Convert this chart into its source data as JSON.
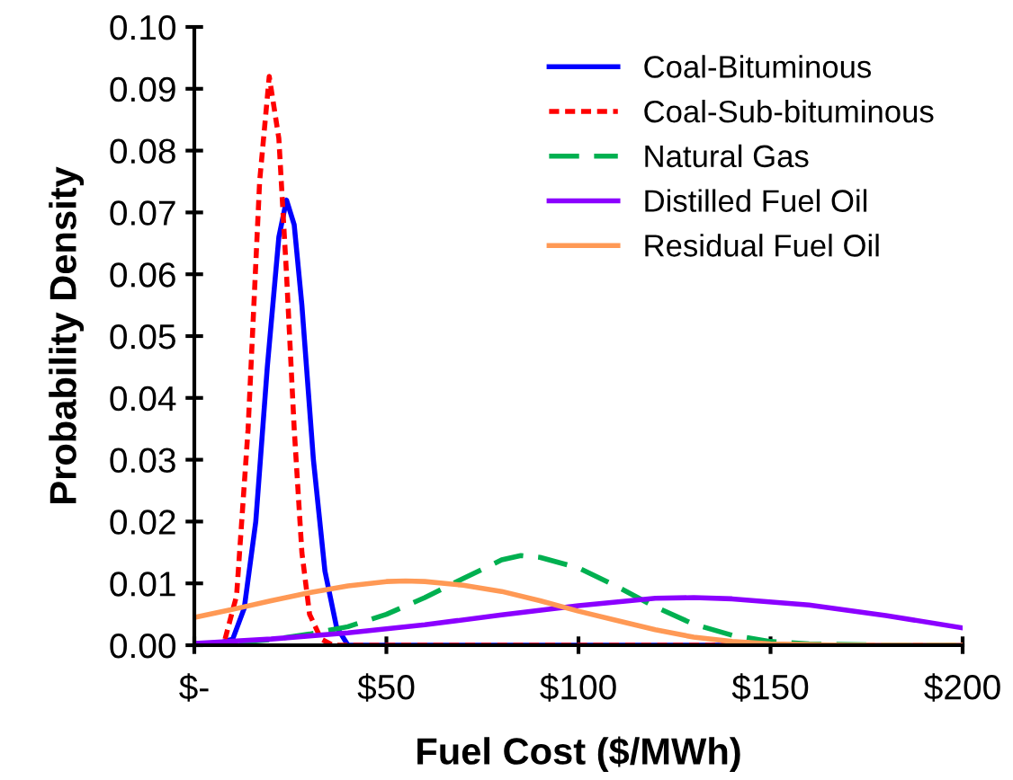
{
  "chart_data": {
    "type": "line",
    "xlabel": "Fuel Cost ($/MWh)",
    "ylabel": "Probability Density",
    "xlim": [
      0,
      200
    ],
    "ylim": [
      0,
      0.1
    ],
    "xticks": [
      {
        "value": 0,
        "label": "$-"
      },
      {
        "value": 50,
        "label": "$50"
      },
      {
        "value": 100,
        "label": "$100"
      },
      {
        "value": 150,
        "label": "$150"
      },
      {
        "value": 200,
        "label": "$200"
      }
    ],
    "yticks": [
      {
        "value": 0,
        "label": "0.00"
      },
      {
        "value": 0.01,
        "label": "0.01"
      },
      {
        "value": 0.02,
        "label": "0.02"
      },
      {
        "value": 0.03,
        "label": "0.03"
      },
      {
        "value": 0.04,
        "label": "0.04"
      },
      {
        "value": 0.05,
        "label": "0.05"
      },
      {
        "value": 0.06,
        "label": "0.06"
      },
      {
        "value": 0.07,
        "label": "0.07"
      },
      {
        "value": 0.08,
        "label": "0.08"
      },
      {
        "value": 0.09,
        "label": "0.09"
      },
      {
        "value": 0.1,
        "label": "0.10"
      }
    ],
    "grid": false,
    "legend": "top right",
    "series": [
      {
        "name": "Coal-Bituminous",
        "color": "#0000ff",
        "line_style": "solid",
        "x": [
          0,
          5,
          10,
          13,
          16,
          19,
          22,
          24,
          26,
          28,
          31,
          34,
          37,
          40,
          45,
          200
        ],
        "values": [
          0,
          0,
          0.001,
          0.006,
          0.02,
          0.045,
          0.066,
          0.072,
          0.068,
          0.055,
          0.03,
          0.012,
          0.003,
          0,
          0,
          0
        ]
      },
      {
        "name": "Coal-Sub-bituminous",
        "color": "#ff0000",
        "line_style": "dotted",
        "x": [
          0,
          5,
          8,
          11,
          14,
          17,
          19.5,
          22,
          24,
          26,
          28,
          30,
          33,
          36,
          200
        ],
        "values": [
          0,
          0,
          0.001,
          0.008,
          0.035,
          0.075,
          0.092,
          0.082,
          0.06,
          0.035,
          0.015,
          0.005,
          0.001,
          0,
          0
        ]
      },
      {
        "name": "Natural Gas",
        "color": "#00b050",
        "line_style": "dashed",
        "x": [
          0,
          10,
          20,
          30,
          40,
          50,
          60,
          70,
          80,
          85,
          90,
          100,
          110,
          120,
          130,
          140,
          150,
          160,
          180,
          200
        ],
        "values": [
          0.0001,
          0.0004,
          0.0009,
          0.0018,
          0.003,
          0.005,
          0.0077,
          0.0108,
          0.0138,
          0.0145,
          0.0142,
          0.0125,
          0.0095,
          0.0062,
          0.0034,
          0.0016,
          0.0006,
          0.0002,
          0,
          0
        ]
      },
      {
        "name": "Distilled Fuel Oil",
        "color": "#8b00ff",
        "line_style": "solid",
        "x": [
          0,
          20,
          40,
          60,
          80,
          100,
          120,
          130,
          140,
          160,
          180,
          200
        ],
        "values": [
          0.0003,
          0.001,
          0.002,
          0.0033,
          0.0049,
          0.0064,
          0.0076,
          0.0077,
          0.0075,
          0.0065,
          0.0048,
          0.0028
        ]
      },
      {
        "name": "Residual Fuel Oil",
        "color": "#ff9955",
        "line_style": "solid",
        "x": [
          0,
          10,
          20,
          30,
          40,
          50,
          55,
          60,
          70,
          80,
          90,
          100,
          110,
          120,
          130,
          140,
          150,
          170,
          200
        ],
        "values": [
          0.0045,
          0.0058,
          0.0072,
          0.0085,
          0.0096,
          0.0103,
          0.0104,
          0.0103,
          0.0097,
          0.0087,
          0.0072,
          0.0055,
          0.004,
          0.0025,
          0.0013,
          0.0006,
          0.0002,
          0,
          0
        ]
      }
    ]
  }
}
